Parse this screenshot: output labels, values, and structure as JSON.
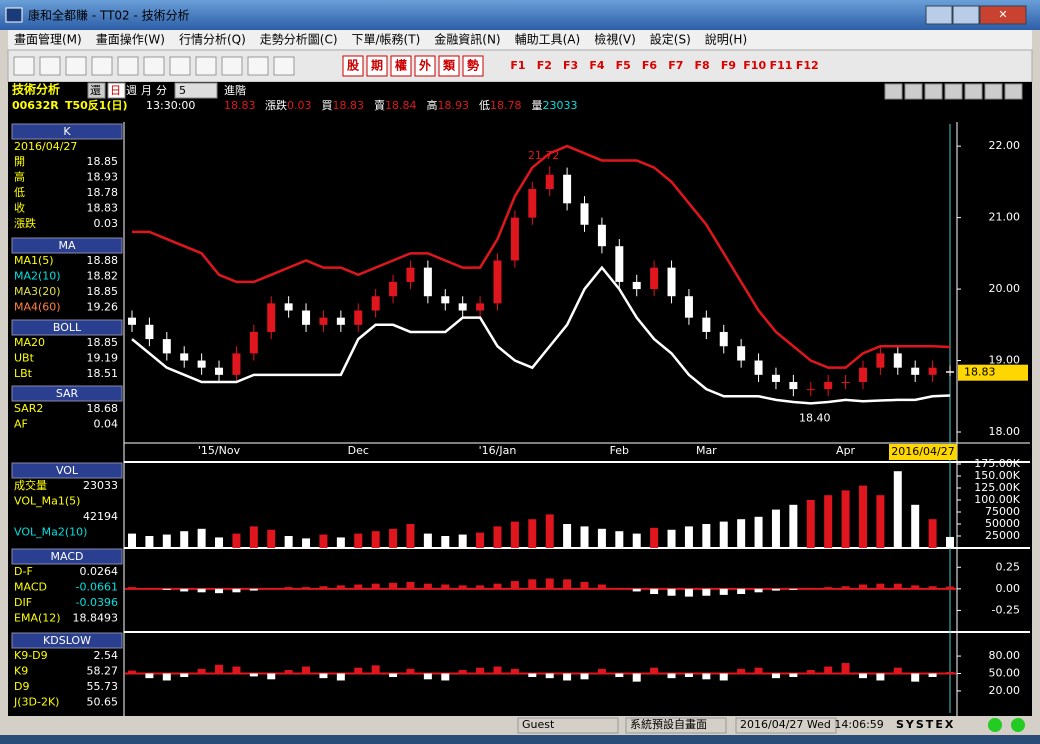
{
  "window": {
    "title": "康和全都賺 - TT02 - 技術分析"
  },
  "menu": [
    "畫面管理(M)",
    "畫面操作(W)",
    "行情分析(Q)",
    "走勢分析圖(C)",
    "下單/帳務(T)",
    "金融資訊(N)",
    "輔助工具(A)",
    "檢視(V)",
    "設定(S)",
    "說明(H)"
  ],
  "toolbar": {
    "buttons": [
      "股",
      "期",
      "權",
      "外",
      "類",
      "勢"
    ],
    "fkeys": [
      "F1",
      "F2",
      "F3",
      "F4",
      "F5",
      "F6",
      "F7",
      "F8",
      "F9",
      "F10",
      "F11",
      "F12"
    ]
  },
  "header": {
    "name": "技術分析",
    "modes": [
      "還",
      "日",
      "週",
      "月",
      "分"
    ],
    "period": "5",
    "advanced": "進階"
  },
  "quote": {
    "symbol": "00632R",
    "name": "T50反1(日)",
    "time": "13:30:00",
    "price": "18.83",
    "items": [
      {
        "label": "漲跌",
        "value": "0.03"
      },
      {
        "label": "買",
        "value": "18.83"
      },
      {
        "label": "賣",
        "value": "18.84"
      },
      {
        "label": "高",
        "value": "18.93"
      },
      {
        "label": "低",
        "value": "18.78"
      },
      {
        "label": "量",
        "value": "23033"
      }
    ]
  },
  "panels": [
    {
      "title": "K",
      "date": "2016/04/27",
      "rows": [
        {
          "label": "開",
          "value": "18.85"
        },
        {
          "label": "高",
          "value": "18.93"
        },
        {
          "label": "低",
          "value": "18.78"
        },
        {
          "label": "收",
          "value": "18.83"
        },
        {
          "label": "漲跌",
          "value": "0.03"
        }
      ]
    },
    {
      "title": "MA",
      "rows": [
        {
          "label": "MA1(5)",
          "value": "18.88"
        },
        {
          "label": "MA2(10)",
          "value": "18.82"
        },
        {
          "label": "MA3(20)",
          "value": "18.85"
        },
        {
          "label": "MA4(60)",
          "value": "19.26"
        }
      ]
    },
    {
      "title": "BOLL",
      "rows": [
        {
          "label": "MA20",
          "value": "18.85"
        },
        {
          "label": "UBt",
          "value": "19.19"
        },
        {
          "label": "LBt",
          "value": "18.51"
        }
      ]
    },
    {
      "title": "SAR",
      "rows": [
        {
          "label": "SAR2",
          "value": "18.68"
        },
        {
          "label": "AF",
          "value": "0.04"
        }
      ]
    },
    {
      "title": "VOL",
      "rows": [
        {
          "label": "成交量",
          "value": "23033"
        },
        {
          "label": "VOL_Ma1(5)"
        },
        {
          "value": "42194"
        },
        {
          "label": "VOL_Ma2(10)"
        }
      ]
    },
    {
      "title": "MACD",
      "rows": [
        {
          "label": "D-F",
          "value": "0.0264"
        },
        {
          "label": "MACD",
          "value": "-0.0661"
        },
        {
          "label": "DIF",
          "value": "-0.0396"
        },
        {
          "label": "EMA(12)",
          "value": "18.8493"
        }
      ]
    },
    {
      "title": "KDSLOW",
      "rows": [
        {
          "label": "K9-D9",
          "value": "2.54"
        },
        {
          "label": "K9",
          "value": "58.27"
        },
        {
          "label": "D9",
          "value": "55.73"
        },
        {
          "label": "J(3D-2K)",
          "value": "50.65"
        }
      ]
    }
  ],
  "chart_data": [
    {
      "type": "candlestick",
      "categories": [
        null,
        null,
        null,
        null,
        null,
        "'15/Nov",
        null,
        null,
        null,
        null,
        null,
        null,
        null,
        "Dec",
        null,
        null,
        null,
        null,
        null,
        null,
        null,
        "'16/Jan",
        null,
        null,
        null,
        null,
        null,
        null,
        "Feb",
        null,
        null,
        null,
        null,
        "Mar",
        null,
        null,
        null,
        null,
        null,
        null,
        null,
        "Apr",
        null,
        null,
        null,
        null,
        null,
        null
      ],
      "open": [
        19.6,
        19.5,
        19.3,
        19.1,
        19.0,
        18.9,
        18.8,
        19.1,
        19.4,
        19.8,
        19.7,
        19.5,
        19.6,
        19.5,
        19.7,
        19.9,
        20.1,
        20.3,
        19.9,
        19.8,
        19.7,
        19.8,
        20.4,
        21.0,
        21.4,
        21.6,
        21.2,
        20.9,
        20.6,
        20.1,
        20.0,
        20.3,
        19.9,
        19.6,
        19.4,
        19.2,
        19.0,
        18.8,
        18.7,
        18.6,
        18.6,
        18.7,
        18.7,
        18.9,
        19.1,
        18.9,
        18.8,
        18.85
      ],
      "high": [
        19.7,
        19.6,
        19.4,
        19.2,
        19.1,
        19.0,
        19.2,
        19.5,
        19.9,
        19.9,
        19.8,
        19.7,
        19.7,
        19.8,
        20.0,
        20.2,
        20.4,
        20.4,
        20.0,
        19.9,
        19.9,
        20.5,
        21.1,
        21.5,
        21.72,
        21.7,
        21.3,
        21.0,
        20.7,
        20.2,
        20.4,
        20.4,
        20.0,
        19.7,
        19.5,
        19.3,
        19.1,
        18.9,
        18.8,
        18.7,
        18.8,
        18.8,
        19.0,
        19.2,
        19.2,
        19.0,
        19.0,
        18.93
      ],
      "low": [
        19.4,
        19.2,
        19.0,
        18.9,
        18.8,
        18.7,
        18.7,
        19.0,
        19.3,
        19.6,
        19.4,
        19.4,
        19.4,
        19.4,
        19.6,
        19.8,
        20.0,
        19.8,
        19.7,
        19.6,
        19.6,
        19.7,
        20.3,
        20.9,
        21.3,
        21.1,
        20.8,
        20.5,
        20.0,
        19.9,
        19.9,
        19.8,
        19.5,
        19.3,
        19.1,
        18.9,
        18.7,
        18.6,
        18.5,
        18.5,
        18.5,
        18.6,
        18.6,
        18.8,
        18.8,
        18.7,
        18.7,
        18.78
      ],
      "close": [
        19.5,
        19.3,
        19.1,
        19.0,
        18.9,
        18.8,
        19.1,
        19.4,
        19.8,
        19.7,
        19.5,
        19.6,
        19.5,
        19.7,
        19.9,
        20.1,
        20.3,
        19.9,
        19.8,
        19.7,
        19.8,
        20.4,
        21.0,
        21.4,
        21.6,
        21.2,
        20.9,
        20.6,
        20.1,
        20.0,
        20.3,
        19.9,
        19.6,
        19.4,
        19.2,
        19.0,
        18.8,
        18.7,
        18.6,
        18.6,
        18.7,
        18.7,
        18.9,
        19.1,
        18.9,
        18.8,
        18.9,
        18.83
      ],
      "series": [
        {
          "name": "UBt",
          "color": "#e0161e",
          "values": [
            20.8,
            20.8,
            20.7,
            20.6,
            20.5,
            20.2,
            20.1,
            20.1,
            20.2,
            20.3,
            20.4,
            20.3,
            20.3,
            20.2,
            20.3,
            20.4,
            20.5,
            20.5,
            20.4,
            20.3,
            20.3,
            20.7,
            21.3,
            21.7,
            21.9,
            22.0,
            21.9,
            21.8,
            21.8,
            21.8,
            21.7,
            21.5,
            21.2,
            20.9,
            20.5,
            20.1,
            19.7,
            19.4,
            19.2,
            19.0,
            18.9,
            18.9,
            19.1,
            19.2,
            19.2,
            19.2,
            19.2,
            19.19
          ]
        },
        {
          "name": "LBt",
          "color": "#ffffff",
          "values": [
            19.3,
            19.1,
            18.9,
            18.8,
            18.7,
            18.7,
            18.7,
            18.8,
            18.8,
            18.8,
            18.8,
            18.8,
            18.8,
            19.3,
            19.5,
            19.5,
            19.4,
            19.4,
            19.4,
            19.6,
            19.6,
            19.2,
            19.0,
            18.9,
            19.2,
            19.5,
            20.0,
            20.3,
            20.0,
            19.6,
            19.3,
            19.1,
            18.8,
            18.6,
            18.5,
            18.5,
            18.5,
            18.45,
            18.42,
            18.4,
            18.42,
            18.45,
            18.43,
            18.44,
            18.45,
            18.45,
            18.5,
            18.51
          ]
        }
      ],
      "annotations": {
        "high_label": "21.72",
        "low_label": "18.40"
      },
      "cursor_label": "2016/04/27",
      "ylim": [
        17.86,
        22.31
      ],
      "yticks": [
        {
          "value": 18,
          "label": "18.00"
        },
        {
          "value": 19,
          "label": "19.00"
        },
        {
          "value": 20,
          "label": "20.00"
        },
        {
          "value": 21,
          "label": "21.00"
        },
        {
          "value": 22,
          "label": "22.00"
        }
      ],
      "up_color": "#e0161e",
      "down_color": "#ffffff"
    },
    {
      "type": "bar",
      "name": "VOL",
      "values": [
        30000,
        25000,
        28000,
        35000,
        40000,
        22000,
        30000,
        45000,
        38000,
        25000,
        20000,
        28000,
        22000,
        30000,
        35000,
        40000,
        50000,
        30000,
        25000,
        28000,
        32000,
        45000,
        55000,
        60000,
        70000,
        50000,
        45000,
        40000,
        35000,
        30000,
        42000,
        38000,
        45000,
        50000,
        55000,
        60000,
        65000,
        80000,
        90000,
        100000,
        110000,
        120000,
        130000,
        110000,
        160000,
        90000,
        60000,
        23033
      ],
      "ylim": [
        0,
        175000
      ],
      "yticks": [
        25000,
        50000,
        75000,
        {
          "value": 100000,
          "label": "100.00K"
        },
        {
          "value": 125000,
          "label": "125.00K"
        },
        {
          "value": 150000,
          "label": "150.00K"
        },
        {
          "value": 175000,
          "label": "175.00K"
        }
      ]
    },
    {
      "type": "bar",
      "name": "MACD",
      "color": "#e0161e",
      "neg_color": "#ffffff",
      "values": [
        0.02,
        0.01,
        -0.01,
        -0.03,
        -0.04,
        -0.05,
        -0.04,
        -0.02,
        0.01,
        0.02,
        0.02,
        0.03,
        0.04,
        0.05,
        0.06,
        0.07,
        0.08,
        0.06,
        0.05,
        0.04,
        0.04,
        0.06,
        0.09,
        0.11,
        0.12,
        0.11,
        0.08,
        0.05,
        0.01,
        -0.03,
        -0.06,
        -0.08,
        -0.09,
        -0.08,
        -0.07,
        -0.06,
        -0.04,
        -0.02,
        -0.01,
        0.01,
        0.02,
        0.03,
        0.05,
        0.06,
        0.06,
        0.04,
        0.03,
        0.0264
      ],
      "ylim": [
        -0.5,
        0.45
      ],
      "yticks": [
        {
          "value": 0.25,
          "label": "0.25"
        },
        {
          "value": 0,
          "label": "0.00"
        },
        {
          "value": -0.25,
          "label": "-0.25"
        }
      ]
    },
    {
      "type": "bar",
      "name": "KDSLOW",
      "color": "#e0161e",
      "neg_color": "#ffffff",
      "base": 50,
      "values": [
        5,
        -8,
        -12,
        -6,
        8,
        15,
        12,
        -5,
        -10,
        6,
        12,
        -8,
        -12,
        10,
        14,
        -6,
        8,
        -10,
        -12,
        6,
        10,
        12,
        8,
        -6,
        -8,
        -12,
        -10,
        8,
        -6,
        -14,
        10,
        -8,
        -6,
        -10,
        -12,
        8,
        10,
        -8,
        -6,
        6,
        12,
        18,
        -8,
        -12,
        10,
        -14,
        -6,
        2.54
      ],
      "ylim": [
        -18,
        118
      ],
      "yticks": [
        {
          "value": 20,
          "label": "20.00"
        },
        {
          "value": 50,
          "label": "50.00"
        },
        {
          "value": 80,
          "label": "80.00"
        }
      ]
    }
  ],
  "status": {
    "user": "Guest",
    "screen": "系統預設自畫面",
    "datetime": "2016/04/27 Wed 14:06:59",
    "brand": "SYSTEX"
  }
}
